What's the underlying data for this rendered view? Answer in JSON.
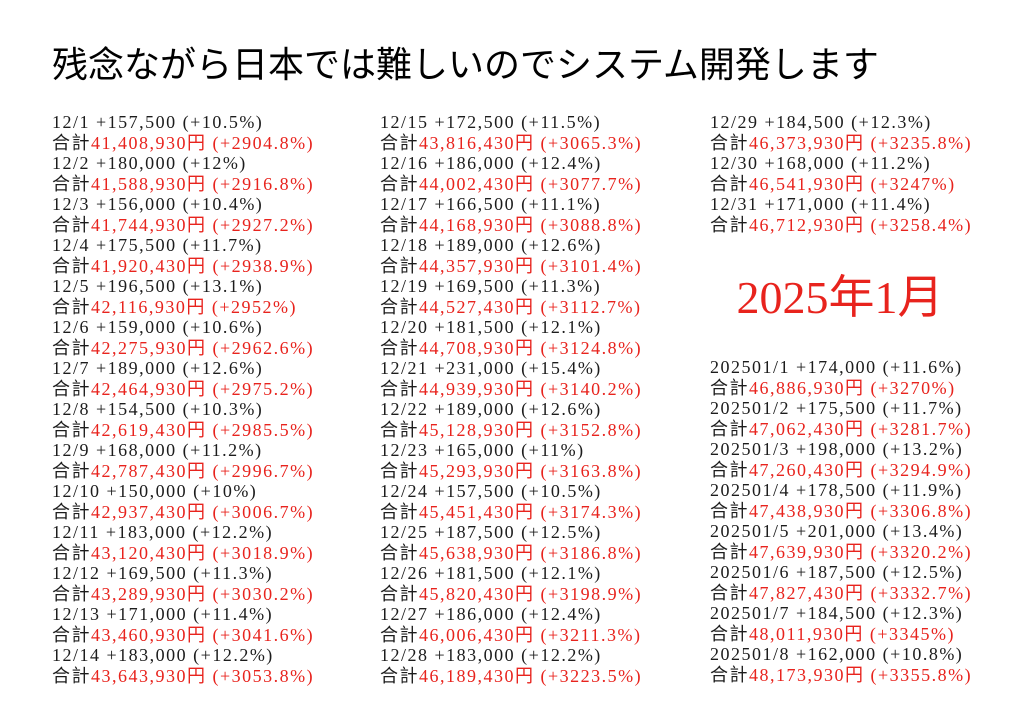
{
  "title": "残念ながら日本では難しいのでシステム開発します",
  "labels": {
    "total": "合計"
  },
  "colors": {
    "text": "#1c1c1c",
    "accent": "#e8231d",
    "background": "#ffffff"
  },
  "columns": [
    {
      "entries": [
        {
          "date": "12/1",
          "change": "+157,500",
          "change_pct": "(+10.5%)",
          "total": "41,408,930円",
          "total_pct": "(+2904.8%)"
        },
        {
          "date": "12/2",
          "change": "+180,000",
          "change_pct": "(+12%)",
          "total": "41,588,930円",
          "total_pct": "(+2916.8%)"
        },
        {
          "date": "12/3",
          "change": "+156,000",
          "change_pct": "(+10.4%)",
          "total": "41,744,930円",
          "total_pct": "(+2927.2%)"
        },
        {
          "date": "12/4",
          "change": "+175,500",
          "change_pct": "(+11.7%)",
          "total": "41,920,430円",
          "total_pct": "(+2938.9%)"
        },
        {
          "date": "12/5",
          "change": "+196,500",
          "change_pct": "(+13.1%)",
          "total": "42,116,930円",
          "total_pct": "(+2952%)"
        },
        {
          "date": "12/6",
          "change": "+159,000",
          "change_pct": "(+10.6%)",
          "total": "42,275,930円",
          "total_pct": "(+2962.6%)"
        },
        {
          "date": "12/7",
          "change": "+189,000",
          "change_pct": "(+12.6%)",
          "total": "42,464,930円",
          "total_pct": "(+2975.2%)"
        },
        {
          "date": "12/8",
          "change": "+154,500",
          "change_pct": "(+10.3%)",
          "total": "42,619,430円",
          "total_pct": "(+2985.5%)"
        },
        {
          "date": "12/9",
          "change": "+168,000",
          "change_pct": "(+11.2%)",
          "total": "42,787,430円",
          "total_pct": "(+2996.7%)"
        },
        {
          "date": "12/10",
          "change": "+150,000",
          "change_pct": "(+10%)",
          "total": "42,937,430円",
          "total_pct": "(+3006.7%)"
        },
        {
          "date": "12/11",
          "change": "+183,000",
          "change_pct": "(+12.2%)",
          "total": "43,120,430円",
          "total_pct": "(+3018.9%)"
        },
        {
          "date": "12/12",
          "change": "+169,500",
          "change_pct": "(+11.3%)",
          "total": "43,289,930円",
          "total_pct": "(+3030.2%)"
        },
        {
          "date": "12/13",
          "change": "+171,000",
          "change_pct": "(+11.4%)",
          "total": "43,460,930円",
          "total_pct": "(+3041.6%)"
        },
        {
          "date": "12/14",
          "change": "+183,000",
          "change_pct": "(+12.2%)",
          "total": "43,643,930円",
          "total_pct": "(+3053.8%)"
        }
      ]
    },
    {
      "entries": [
        {
          "date": "12/15",
          "change": "+172,500",
          "change_pct": "(+11.5%)",
          "total": "43,816,430円",
          "total_pct": "(+3065.3%)"
        },
        {
          "date": "12/16",
          "change": "+186,000",
          "change_pct": "(+12.4%)",
          "total": "44,002,430円",
          "total_pct": "(+3077.7%)"
        },
        {
          "date": "12/17",
          "change": "+166,500",
          "change_pct": "(+11.1%)",
          "total": "44,168,930円",
          "total_pct": "(+3088.8%)"
        },
        {
          "date": "12/18",
          "change": "+189,000",
          "change_pct": "(+12.6%)",
          "total": "44,357,930円",
          "total_pct": "(+3101.4%)"
        },
        {
          "date": "12/19",
          "change": "+169,500",
          "change_pct": "(+11.3%)",
          "total": "44,527,430円",
          "total_pct": "(+3112.7%)"
        },
        {
          "date": "12/20",
          "change": "+181,500",
          "change_pct": "(+12.1%)",
          "total": "44,708,930円",
          "total_pct": "(+3124.8%)"
        },
        {
          "date": "12/21",
          "change": "+231,000",
          "change_pct": "(+15.4%)",
          "total": "44,939,930円",
          "total_pct": "(+3140.2%)"
        },
        {
          "date": "12/22",
          "change": "+189,000",
          "change_pct": "(+12.6%)",
          "total": "45,128,930円",
          "total_pct": "(+3152.8%)"
        },
        {
          "date": "12/23",
          "change": "+165,000",
          "change_pct": "(+11%)",
          "total": "45,293,930円",
          "total_pct": "(+3163.8%)"
        },
        {
          "date": "12/24",
          "change": "+157,500",
          "change_pct": "(+10.5%)",
          "total": "45,451,430円",
          "total_pct": "(+3174.3%)"
        },
        {
          "date": "12/25",
          "change": "+187,500",
          "change_pct": "(+12.5%)",
          "total": "45,638,930円",
          "total_pct": "(+3186.8%)"
        },
        {
          "date": "12/26",
          "change": "+181,500",
          "change_pct": "(+12.1%)",
          "total": "45,820,430円",
          "total_pct": "(+3198.9%)"
        },
        {
          "date": "12/27",
          "change": "+186,000",
          "change_pct": "(+12.4%)",
          "total": "46,006,430円",
          "total_pct": "(+3211.3%)"
        },
        {
          "date": "12/28",
          "change": "+183,000",
          "change_pct": "(+12.2%)",
          "total": "46,189,430円",
          "total_pct": "(+3223.5%)"
        }
      ]
    },
    {
      "entries": [
        {
          "date": "12/29",
          "change": "+184,500",
          "change_pct": "(+12.3%)",
          "total": "46,373,930円",
          "total_pct": "(+3235.8%)"
        },
        {
          "date": "12/30",
          "change": "+168,000",
          "change_pct": "(+11.2%)",
          "total": "46,541,930円",
          "total_pct": "(+3247%)"
        },
        {
          "date": "12/31",
          "change": "+171,000",
          "change_pct": "(+11.4%)",
          "total": "46,712,930円",
          "total_pct": "(+3258.4%)"
        }
      ]
    }
  ],
  "month_section": {
    "heading": "2025年1月",
    "entries": [
      {
        "date": "202501/1",
        "change": "+174,000",
        "change_pct": "(+11.6%)",
        "total": "46,886,930円",
        "total_pct": "(+3270%)"
      },
      {
        "date": "202501/2",
        "change": "+175,500",
        "change_pct": "(+11.7%)",
        "total": "47,062,430円",
        "total_pct": "(+3281.7%)"
      },
      {
        "date": "202501/3",
        "change": "+198,000",
        "change_pct": "(+13.2%)",
        "total": "47,260,430円",
        "total_pct": "(+3294.9%)"
      },
      {
        "date": "202501/4",
        "change": "+178,500",
        "change_pct": "(+11.9%)",
        "total": "47,438,930円",
        "total_pct": "(+3306.8%)"
      },
      {
        "date": "202501/5",
        "change": "+201,000",
        "change_pct": "(+13.4%)",
        "total": "47,639,930円",
        "total_pct": "(+3320.2%)"
      },
      {
        "date": "202501/6",
        "change": "+187,500",
        "change_pct": "(+12.5%)",
        "total": "47,827,430円",
        "total_pct": "(+3332.7%)"
      },
      {
        "date": "202501/7",
        "change": "+184,500",
        "change_pct": "(+12.3%)",
        "total": "48,011,930円",
        "total_pct": "(+3345%)"
      },
      {
        "date": "202501/8",
        "change": "+162,000",
        "change_pct": "(+10.8%)",
        "total": "48,173,930円",
        "total_pct": "(+3355.8%)"
      }
    ]
  }
}
